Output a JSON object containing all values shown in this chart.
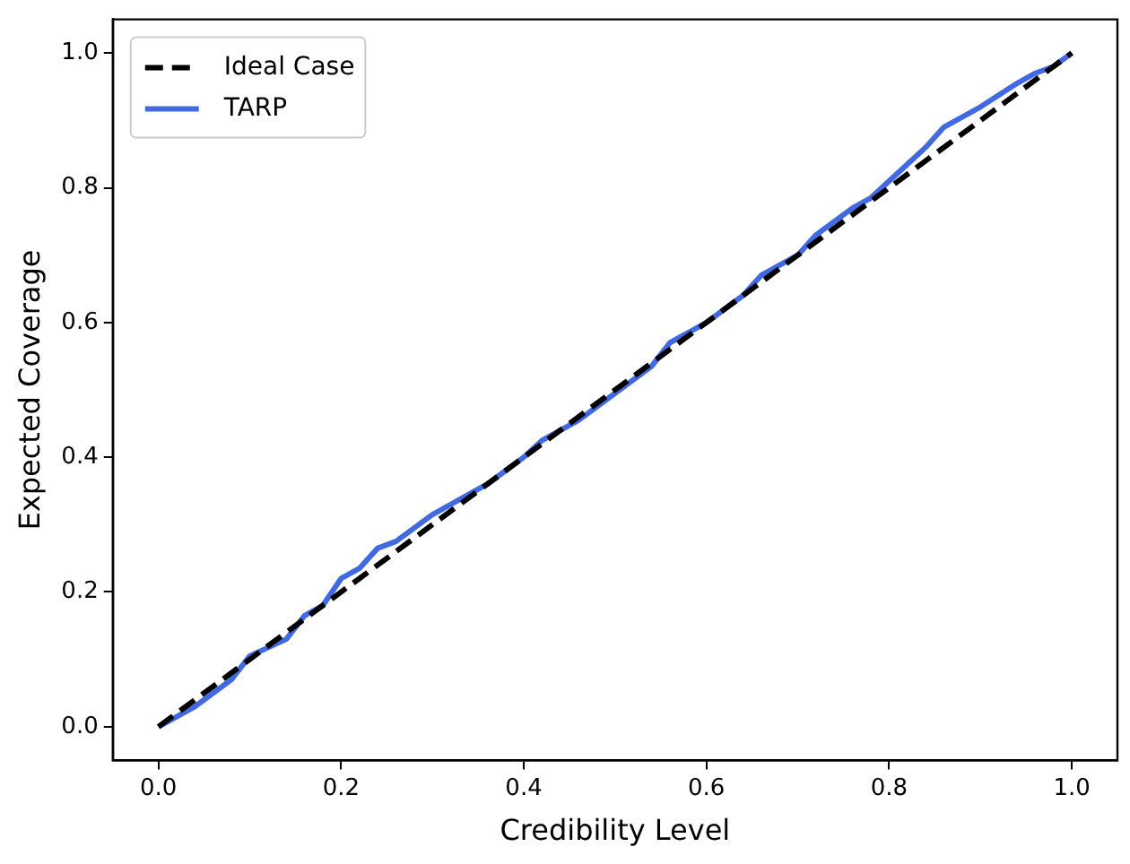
{
  "chart_data": {
    "type": "line",
    "xlabel": "Credibility Level",
    "ylabel": "Expected Coverage",
    "xlim": [
      -0.05,
      1.05
    ],
    "ylim": [
      -0.05,
      1.05
    ],
    "xticks": [
      {
        "value": 0,
        "label": "0.0"
      },
      {
        "value": 0.2,
        "label": "0.2"
      },
      {
        "value": 0.4,
        "label": "0.4"
      },
      {
        "value": 0.6,
        "label": "0.6"
      },
      {
        "value": 0.8,
        "label": "0.8"
      },
      {
        "value": 1,
        "label": "1.0"
      }
    ],
    "yticks": [
      {
        "value": 0,
        "label": "0.0"
      },
      {
        "value": 0.2,
        "label": "0.2"
      },
      {
        "value": 0.4,
        "label": "0.4"
      },
      {
        "value": 0.6,
        "label": "0.6"
      },
      {
        "value": 0.8,
        "label": "0.8"
      },
      {
        "value": 1,
        "label": "1.0"
      }
    ],
    "grid": false,
    "legend": "top left",
    "marker": "none",
    "series": [
      {
        "name": "Ideal Case",
        "color": "#000000",
        "line_style": "dashed",
        "x": [
          0,
          1
        ],
        "values": [
          0,
          1
        ]
      },
      {
        "name": "TARP",
        "color": "#4169e1",
        "line_style": "solid",
        "x": [
          0,
          0.04,
          0.08,
          0.1,
          0.14,
          0.16,
          0.18,
          0.2,
          0.22,
          0.24,
          0.26,
          0.28,
          0.3,
          0.32,
          0.36,
          0.4,
          0.42,
          0.46,
          0.48,
          0.5,
          0.54,
          0.56,
          0.6,
          0.64,
          0.66,
          0.7,
          0.72,
          0.76,
          0.78,
          0.82,
          0.84,
          0.86,
          0.88,
          0.9,
          0.94,
          0.96,
          0.98,
          1
        ],
        "values": [
          0,
          0.03,
          0.07,
          0.105,
          0.13,
          0.165,
          0.18,
          0.22,
          0.235,
          0.265,
          0.275,
          0.295,
          0.315,
          0.33,
          0.36,
          0.4,
          0.425,
          0.455,
          0.475,
          0.495,
          0.535,
          0.57,
          0.6,
          0.64,
          0.67,
          0.7,
          0.73,
          0.77,
          0.785,
          0.835,
          0.86,
          0.89,
          0.905,
          0.92,
          0.955,
          0.97,
          0.98,
          1
        ]
      }
    ]
  }
}
